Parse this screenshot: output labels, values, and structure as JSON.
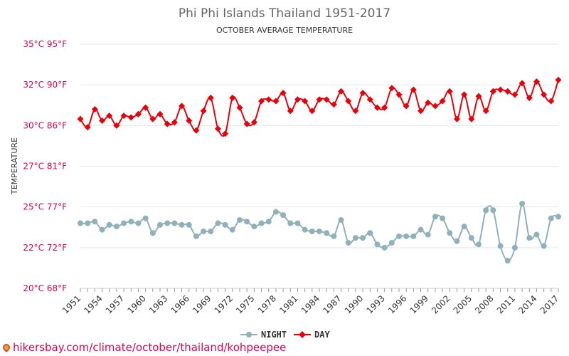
{
  "chart_data": {
    "type": "line",
    "title": "Phi Phi Islands Thailand 1951-2017",
    "subtitle": "OCTOBER AVERAGE TEMPERATURE",
    "ylabel": "TEMPERATURE",
    "ylim": [
      20,
      35
    ],
    "y_ticks": [
      {
        "value": 35,
        "label": "35°C 95°F"
      },
      {
        "value": 32.5,
        "label": "32°C 90°F"
      },
      {
        "value": 30,
        "label": "30°C 86°F"
      },
      {
        "value": 27.5,
        "label": "27°C 81°F"
      },
      {
        "value": 25,
        "label": "25°C 77°F"
      },
      {
        "value": 22.5,
        "label": "22°C 72°F"
      },
      {
        "value": 20,
        "label": "20°C 68°F"
      }
    ],
    "x": [
      1951,
      1952,
      1953,
      1954,
      1955,
      1956,
      1957,
      1958,
      1959,
      1960,
      1961,
      1962,
      1963,
      1964,
      1965,
      1966,
      1967,
      1968,
      1969,
      1970,
      1971,
      1972,
      1973,
      1974,
      1975,
      1976,
      1977,
      1978,
      1979,
      1980,
      1981,
      1982,
      1983,
      1984,
      1985,
      1986,
      1987,
      1988,
      1989,
      1990,
      1991,
      1992,
      1993,
      1994,
      1995,
      1996,
      1997,
      1998,
      1999,
      2000,
      2001,
      2002,
      2003,
      2004,
      2005,
      2006,
      2007,
      2008,
      2009,
      2010,
      2011,
      2012,
      2013,
      2014,
      2015,
      2016,
      2017
    ],
    "x_tick_labels": [
      "1951",
      "1954",
      "1957",
      "1960",
      "1963",
      "1966",
      "1969",
      "1972",
      "1975",
      "1978",
      "1981",
      "1984",
      "1987",
      "1990",
      "1993",
      "1996",
      "1999",
      "2002",
      "2005",
      "2008",
      "2011",
      "2014",
      "2017"
    ],
    "series": [
      {
        "name": "NIGHT",
        "color": "#90b0ba",
        "marker": "circle",
        "values": [
          24.0,
          24.0,
          24.1,
          23.6,
          23.9,
          23.8,
          24.0,
          24.1,
          24.0,
          24.3,
          23.4,
          23.9,
          24.0,
          24.0,
          23.9,
          23.9,
          23.2,
          23.5,
          23.5,
          24.0,
          23.9,
          23.6,
          24.2,
          24.1,
          23.8,
          24.0,
          24.1,
          24.7,
          24.5,
          24.0,
          24.0,
          23.6,
          23.5,
          23.5,
          23.4,
          23.2,
          24.2,
          22.8,
          23.1,
          23.1,
          23.4,
          22.7,
          22.5,
          22.8,
          23.2,
          23.2,
          23.2,
          23.6,
          23.3,
          24.4,
          24.3,
          23.4,
          22.9,
          23.8,
          23.1,
          22.7,
          24.8,
          24.8,
          22.6,
          21.7,
          22.5,
          25.2,
          23.1,
          23.3,
          22.6,
          24.3,
          24.4
        ]
      },
      {
        "name": "DAY",
        "color": "#e8000b",
        "marker": "diamond",
        "values": [
          30.4,
          29.9,
          31.0,
          30.3,
          30.6,
          30.0,
          30.6,
          30.5,
          30.7,
          31.1,
          30.4,
          30.7,
          30.1,
          30.2,
          31.2,
          30.3,
          29.7,
          30.9,
          31.7,
          29.8,
          29.5,
          31.7,
          31.1,
          30.1,
          30.2,
          31.5,
          31.6,
          31.5,
          32.0,
          30.9,
          31.6,
          31.5,
          30.9,
          31.6,
          31.6,
          31.3,
          32.1,
          31.5,
          30.9,
          32.0,
          31.6,
          31.1,
          31.1,
          32.3,
          31.9,
          31.2,
          32.2,
          30.9,
          31.4,
          31.2,
          31.5,
          32.1,
          30.4,
          31.9,
          30.4,
          31.8,
          30.9,
          32.1,
          32.2,
          32.1,
          31.9,
          32.6,
          31.7,
          32.7,
          31.9,
          31.5,
          32.8
        ]
      }
    ],
    "legend": {
      "placement": "bottom-center",
      "entries": [
        "NIGHT",
        "DAY"
      ]
    }
  },
  "footer": {
    "text": "hikersbay.com/climate/october/thailand/kohpeepee"
  }
}
